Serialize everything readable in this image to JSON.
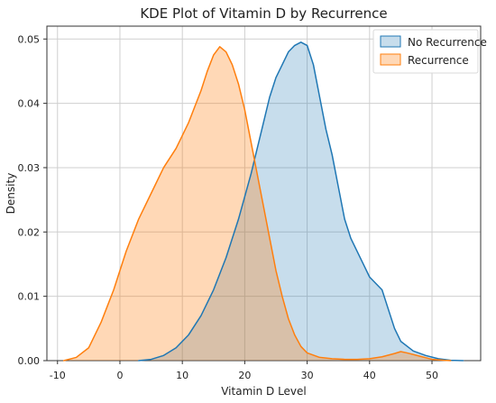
{
  "chart_data": {
    "type": "area",
    "title": "KDE Plot of Vitamin D by Recurrence",
    "xlabel": "Vitamin D Level",
    "ylabel": "Density",
    "xlim": [
      -11.7,
      57.8
    ],
    "ylim": [
      0,
      0.052
    ],
    "xticks": [
      -10,
      0,
      10,
      20,
      30,
      40,
      50
    ],
    "yticks": [
      0.0,
      0.01,
      0.02,
      0.03,
      0.04,
      0.05
    ],
    "yticklabels": [
      "0.00",
      "0.01",
      "0.02",
      "0.03",
      "0.04",
      "0.05"
    ],
    "grid": true,
    "legend_position": "top-right",
    "series": [
      {
        "name": "No Recurrence",
        "color": "#1f77b4",
        "fill_opacity": 0.25,
        "points": [
          [
            3,
            0
          ],
          [
            5,
            0.0002
          ],
          [
            7,
            0.0008
          ],
          [
            9,
            0.002
          ],
          [
            11,
            0.004
          ],
          [
            13,
            0.007
          ],
          [
            15,
            0.011
          ],
          [
            17,
            0.016
          ],
          [
            19,
            0.022
          ],
          [
            21,
            0.029
          ],
          [
            23,
            0.037
          ],
          [
            24,
            0.041
          ],
          [
            25,
            0.044
          ],
          [
            26,
            0.046
          ],
          [
            27,
            0.048
          ],
          [
            28,
            0.049
          ],
          [
            29,
            0.0495
          ],
          [
            30,
            0.049
          ],
          [
            31,
            0.046
          ],
          [
            32,
            0.041
          ],
          [
            33,
            0.036
          ],
          [
            34,
            0.032
          ],
          [
            35,
            0.027
          ],
          [
            36,
            0.022
          ],
          [
            37,
            0.019
          ],
          [
            38,
            0.017
          ],
          [
            39,
            0.015
          ],
          [
            40,
            0.013
          ],
          [
            42,
            0.011
          ],
          [
            43,
            0.008
          ],
          [
            44,
            0.005
          ],
          [
            45,
            0.003
          ],
          [
            47,
            0.0015
          ],
          [
            49,
            0.0008
          ],
          [
            51,
            0.0003
          ],
          [
            53,
            5e-05
          ],
          [
            55,
            0
          ]
        ]
      },
      {
        "name": "Recurrence",
        "color": "#ff7f0e",
        "fill_opacity": 0.3,
        "points": [
          [
            -9,
            0
          ],
          [
            -7,
            0.0005
          ],
          [
            -5,
            0.002
          ],
          [
            -3,
            0.006
          ],
          [
            -1,
            0.011
          ],
          [
            1,
            0.017
          ],
          [
            3,
            0.022
          ],
          [
            5,
            0.026
          ],
          [
            7,
            0.03
          ],
          [
            9,
            0.033
          ],
          [
            11,
            0.037
          ],
          [
            13,
            0.042
          ],
          [
            14,
            0.045
          ],
          [
            15,
            0.0475
          ],
          [
            16,
            0.0488
          ],
          [
            17,
            0.048
          ],
          [
            18,
            0.046
          ],
          [
            19,
            0.043
          ],
          [
            20,
            0.039
          ],
          [
            21,
            0.034
          ],
          [
            22,
            0.029
          ],
          [
            23,
            0.024
          ],
          [
            24,
            0.019
          ],
          [
            25,
            0.014
          ],
          [
            26,
            0.01
          ],
          [
            27,
            0.0065
          ],
          [
            28,
            0.004
          ],
          [
            29,
            0.0022
          ],
          [
            30,
            0.0012
          ],
          [
            32,
            0.0005
          ],
          [
            34,
            0.0003
          ],
          [
            36,
            0.0002
          ],
          [
            38,
            0.0002
          ],
          [
            40,
            0.0003
          ],
          [
            42,
            0.0006
          ],
          [
            44,
            0.0011
          ],
          [
            45,
            0.0014
          ],
          [
            46,
            0.0012
          ],
          [
            48,
            0.0007
          ],
          [
            50,
            0.0002
          ],
          [
            52,
            5e-05
          ],
          [
            53,
            0
          ]
        ]
      }
    ]
  }
}
